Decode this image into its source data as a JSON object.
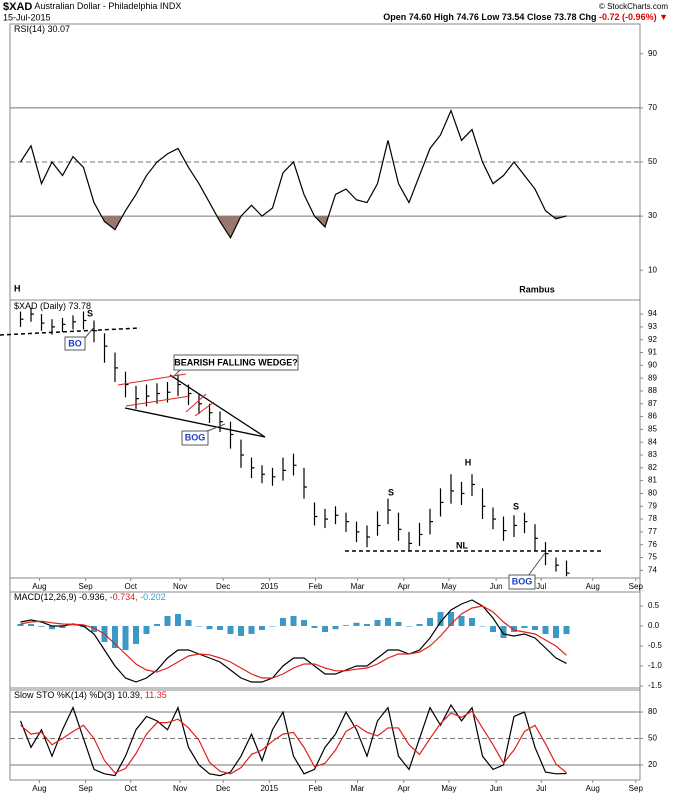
{
  "header": {
    "symbol": "$XAD",
    "name": "Australian Dollar - Philadelphia INDX",
    "date": "15-Jul-2015",
    "watermark": "© StockCharts.com",
    "quote": [
      {
        "label": "Open",
        "value": "74.60"
      },
      {
        "label": "High",
        "value": "74.76"
      },
      {
        "label": "Low",
        "value": "73.54"
      },
      {
        "label": "Close",
        "value": "73.78"
      },
      {
        "label": "Chg",
        "value": "-0.72 (-0.96%)"
      }
    ]
  },
  "chart_data": [
    {
      "type": "line",
      "title": "RSI(14)",
      "legend": [
        "30.07"
      ],
      "x": [
        1,
        2,
        3,
        4,
        5,
        6,
        7,
        8,
        9,
        10,
        11,
        12,
        13,
        14,
        15,
        16,
        17,
        18,
        19,
        20,
        21,
        22,
        23,
        24,
        25,
        26,
        27,
        28,
        29,
        30,
        31,
        32,
        33,
        34,
        35,
        36,
        37,
        38,
        39,
        40,
        41,
        42,
        43,
        44,
        45,
        46,
        47,
        48,
        49,
        50,
        51,
        52,
        53
      ],
      "series": [
        {
          "color": "#000000",
          "values": [
            50,
            56,
            42,
            50,
            45,
            52,
            48,
            35,
            28,
            25,
            32,
            38,
            45,
            50,
            53,
            55,
            48,
            42,
            35,
            28,
            22,
            30,
            34,
            30,
            33,
            46,
            50,
            38,
            30,
            26,
            38,
            40,
            36,
            35,
            42,
            58,
            42,
            35,
            45,
            55,
            60,
            69,
            58,
            62,
            50,
            42,
            45,
            50,
            45,
            40,
            32,
            29,
            30.07
          ],
          "fill_below": 30,
          "fill_color": "#9a7870"
        }
      ],
      "xlim": [
        0,
        60
      ],
      "ylim": [
        -1,
        101
      ],
      "yticks": [
        10,
        30,
        50,
        70,
        90
      ],
      "reference_lines": [
        70,
        50,
        30
      ],
      "reference_styles": [
        "solid",
        "dashed",
        "solid"
      ]
    },
    {
      "type": "ohlc",
      "title": "$XAD (Daily)",
      "legend": [
        "73.78"
      ],
      "color": "#000000",
      "annotations": [
        "H",
        "Rambus",
        "S",
        "BO",
        "BEARISH FALLING WEDGE?",
        "BOG",
        "S",
        "H",
        "S",
        "NL",
        "BOG"
      ],
      "x": [
        1,
        2,
        3,
        4,
        5,
        6,
        7,
        8,
        9,
        10,
        11,
        12,
        13,
        14,
        15,
        16,
        17,
        18,
        19,
        20,
        21,
        22,
        23,
        24,
        25,
        26,
        27,
        28,
        29,
        30,
        31,
        32,
        33,
        34,
        35,
        36,
        37,
        38,
        39,
        40,
        41,
        42,
        43,
        44,
        45,
        46,
        47,
        48,
        49,
        50,
        51,
        52,
        53
      ],
      "high": [
        94.2,
        94.5,
        94.0,
        93.6,
        93.7,
        93.9,
        94.2,
        93.5,
        92.5,
        91.0,
        89.5,
        88.4,
        88.5,
        88.6,
        88.7,
        89.3,
        88.5,
        87.8,
        87.0,
        86.4,
        85.6,
        84.2,
        82.8,
        82.2,
        82.0,
        82.8,
        83.1,
        82.0,
        79.3,
        78.8,
        79.0,
        78.5,
        77.8,
        77.5,
        78.6,
        79.6,
        78.5,
        77.0,
        77.7,
        78.8,
        80.4,
        81.5,
        80.9,
        81.5,
        80.4,
        78.9,
        78.2,
        78.3,
        78.5,
        77.6,
        76.2,
        75.0,
        74.76
      ],
      "low": [
        93.0,
        93.4,
        92.7,
        92.4,
        92.6,
        92.8,
        92.8,
        91.8,
        90.2,
        88.7,
        87.5,
        86.6,
        86.8,
        87.0,
        87.1,
        87.6,
        86.9,
        86.2,
        85.5,
        84.8,
        83.5,
        82.0,
        81.2,
        80.8,
        80.6,
        81.0,
        81.4,
        79.6,
        77.5,
        77.3,
        77.6,
        77.0,
        76.2,
        75.8,
        76.7,
        77.6,
        76.3,
        75.5,
        75.9,
        76.8,
        78.2,
        79.2,
        79.1,
        79.8,
        78.0,
        77.2,
        76.3,
        76.6,
        76.9,
        75.5,
        74.4,
        73.9,
        73.54
      ],
      "close": [
        93.6,
        94.0,
        93.3,
        93.0,
        93.2,
        93.4,
        93.5,
        92.7,
        91.5,
        89.8,
        88.5,
        87.4,
        87.6,
        87.8,
        87.9,
        88.5,
        87.8,
        87.0,
        86.3,
        85.6,
        84.6,
        83.0,
        82.0,
        81.5,
        81.3,
        81.8,
        82.2,
        80.5,
        78.2,
        78.0,
        78.3,
        77.8,
        77.0,
        76.6,
        77.5,
        78.7,
        77.2,
        76.1,
        76.8,
        77.8,
        79.3,
        80.2,
        80.0,
        80.7,
        79.0,
        78.0,
        77.1,
        77.5,
        77.8,
        76.5,
        75.3,
        74.4,
        73.78
      ],
      "xlim": [
        0,
        60
      ],
      "ylim": [
        73.4,
        95.1
      ],
      "yticks": [
        74,
        75,
        76,
        77,
        78,
        79,
        80,
        81,
        82,
        83,
        84,
        85,
        86,
        87,
        88,
        89,
        90,
        91,
        92,
        93,
        94
      ],
      "xticks": [
        {
          "value": 2.8,
          "label": "Aug"
        },
        {
          "value": 7.2,
          "label": "Sep"
        },
        {
          "value": 11.5,
          "label": "Oct"
        },
        {
          "value": 16.2,
          "label": "Nov"
        },
        {
          "value": 20.3,
          "label": "Dec"
        },
        {
          "value": 24.7,
          "label": "2015"
        },
        {
          "value": 29.1,
          "label": "Feb"
        },
        {
          "value": 33.1,
          "label": "Mar"
        },
        {
          "value": 37.5,
          "label": "Apr"
        },
        {
          "value": 41.8,
          "label": "May"
        },
        {
          "value": 46.3,
          "label": "Jun"
        },
        {
          "value": 50.6,
          "label": "Jul"
        },
        {
          "value": 55.5,
          "label": "Aug"
        },
        {
          "value": 59.6,
          "label": "Sep"
        }
      ]
    },
    {
      "type": "line",
      "title": "MACD(12,26,9)",
      "legend": [
        "-0.936,",
        "-0.734,",
        "-0.202"
      ],
      "x": [
        1,
        2,
        3,
        4,
        5,
        6,
        7,
        8,
        9,
        10,
        11,
        12,
        13,
        14,
        15,
        16,
        17,
        18,
        19,
        20,
        21,
        22,
        23,
        24,
        25,
        26,
        27,
        28,
        29,
        30,
        31,
        32,
        33,
        34,
        35,
        36,
        37,
        38,
        39,
        40,
        41,
        42,
        43,
        44,
        45,
        46,
        47,
        48,
        49,
        50,
        51,
        52,
        53
      ],
      "series": [
        {
          "color": "#000000",
          "values": [
            0.1,
            0.15,
            0.1,
            0.0,
            0.0,
            0.05,
            0.0,
            -0.2,
            -0.6,
            -1.0,
            -1.3,
            -1.4,
            -1.3,
            -1.1,
            -0.8,
            -0.6,
            -0.6,
            -0.7,
            -0.8,
            -0.9,
            -1.1,
            -1.3,
            -1.4,
            -1.4,
            -1.3,
            -1.0,
            -0.8,
            -0.8,
            -1.0,
            -1.2,
            -1.2,
            -1.1,
            -1.0,
            -1.0,
            -0.8,
            -0.6,
            -0.6,
            -0.7,
            -0.6,
            -0.3,
            0.1,
            0.4,
            0.55,
            0.65,
            0.5,
            0.2,
            -0.2,
            -0.25,
            -0.2,
            -0.3,
            -0.55,
            -0.8,
            -0.936
          ]
        },
        {
          "color": "#e0201b",
          "values": [
            0.05,
            0.1,
            0.12,
            0.08,
            0.05,
            0.04,
            0.03,
            -0.05,
            -0.2,
            -0.45,
            -0.7,
            -0.95,
            -1.1,
            -1.15,
            -1.05,
            -0.9,
            -0.75,
            -0.7,
            -0.72,
            -0.8,
            -0.9,
            -1.05,
            -1.2,
            -1.3,
            -1.3,
            -1.2,
            -1.05,
            -0.95,
            -0.95,
            -1.05,
            -1.12,
            -1.12,
            -1.08,
            -1.05,
            -0.95,
            -0.8,
            -0.7,
            -0.7,
            -0.65,
            -0.5,
            -0.25,
            0.05,
            0.3,
            0.45,
            0.5,
            0.35,
            0.1,
            -0.1,
            -0.15,
            -0.2,
            -0.35,
            -0.5,
            -0.734
          ]
        },
        {
          "color": "#3b9ac4",
          "kind": "bar",
          "values": [
            0.05,
            0.05,
            -0.02,
            -0.08,
            -0.05,
            0.01,
            -0.03,
            -0.15,
            -0.4,
            -0.55,
            -0.6,
            -0.45,
            -0.2,
            0.05,
            0.25,
            0.3,
            0.15,
            0,
            -0.08,
            -0.1,
            -0.2,
            -0.25,
            -0.2,
            -0.1,
            0,
            0.2,
            0.25,
            0.15,
            -0.05,
            -0.15,
            -0.08,
            0.02,
            0.08,
            0.05,
            0.15,
            0.2,
            0.1,
            0,
            0.05,
            0.2,
            0.35,
            0.35,
            0.25,
            0.2,
            0,
            -0.15,
            -0.3,
            -0.15,
            -0.05,
            -0.1,
            -0.2,
            -0.3,
            -0.202
          ]
        }
      ],
      "xlim": [
        0,
        60
      ],
      "ylim": [
        -1.55,
        0.85
      ],
      "yticks": [
        -1.5,
        {
          "value": -1,
          "label": "-1.0"
        },
        -0.5,
        {
          "value": 0,
          "label": "0.0"
        },
        0.5
      ]
    },
    {
      "type": "line",
      "title": "Slow STO %K(14) %D(3)",
      "legend": [
        "10.39,",
        "11.35"
      ],
      "x": [
        1,
        2,
        3,
        4,
        5,
        6,
        7,
        8,
        9,
        10,
        11,
        12,
        13,
        14,
        15,
        16,
        17,
        18,
        19,
        20,
        21,
        22,
        23,
        24,
        25,
        26,
        27,
        28,
        29,
        30,
        31,
        32,
        33,
        34,
        35,
        36,
        37,
        38,
        39,
        40,
        41,
        42,
        43,
        44,
        45,
        46,
        47,
        48,
        49,
        50,
        51,
        52,
        53
      ],
      "series": [
        {
          "color": "#000000",
          "values": [
            70,
            40,
            60,
            30,
            60,
            85,
            50,
            15,
            10,
            8,
            30,
            60,
            75,
            70,
            60,
            85,
            40,
            20,
            10,
            8,
            12,
            30,
            55,
            25,
            60,
            80,
            30,
            10,
            15,
            40,
            55,
            80,
            60,
            30,
            70,
            85,
            30,
            15,
            50,
            85,
            65,
            88,
            70,
            85,
            30,
            15,
            20,
            75,
            80,
            40,
            12,
            10,
            10.39
          ]
        },
        {
          "color": "#e0201b",
          "values": [
            65,
            55,
            57,
            43,
            50,
            58,
            65,
            50,
            25,
            11,
            16,
            33,
            55,
            68,
            68,
            72,
            62,
            48,
            23,
            13,
            10,
            17,
            32,
            37,
            47,
            55,
            57,
            40,
            18,
            22,
            37,
            58,
            65,
            57,
            53,
            62,
            62,
            43,
            32,
            50,
            67,
            79,
            74,
            81,
            62,
            43,
            22,
            37,
            58,
            65,
            44,
            21,
            11.35
          ]
        }
      ],
      "xlim": [
        0,
        60
      ],
      "ylim": [
        3,
        105
      ],
      "yticks": [
        20,
        50,
        80
      ],
      "reference_lines": [
        80,
        50,
        20
      ],
      "reference_styles": [
        "solid",
        "dashed",
        "solid"
      ],
      "xticks": [
        {
          "value": 2.8,
          "label": "Aug"
        },
        {
          "value": 7.2,
          "label": "Sep"
        },
        {
          "value": 11.5,
          "label": "Oct"
        },
        {
          "value": 16.2,
          "label": "Nov"
        },
        {
          "value": 20.3,
          "label": "Dec"
        },
        {
          "value": 24.7,
          "label": "2015"
        },
        {
          "value": 29.1,
          "label": "Feb"
        },
        {
          "value": 33.1,
          "label": "Mar"
        },
        {
          "value": 37.5,
          "label": "Apr"
        },
        {
          "value": 41.8,
          "label": "May"
        },
        {
          "value": 46.3,
          "label": "Jun"
        },
        {
          "value": 50.6,
          "label": "Jul"
        },
        {
          "value": 55.5,
          "label": "Aug"
        },
        {
          "value": 59.6,
          "label": "Sep"
        }
      ]
    }
  ]
}
